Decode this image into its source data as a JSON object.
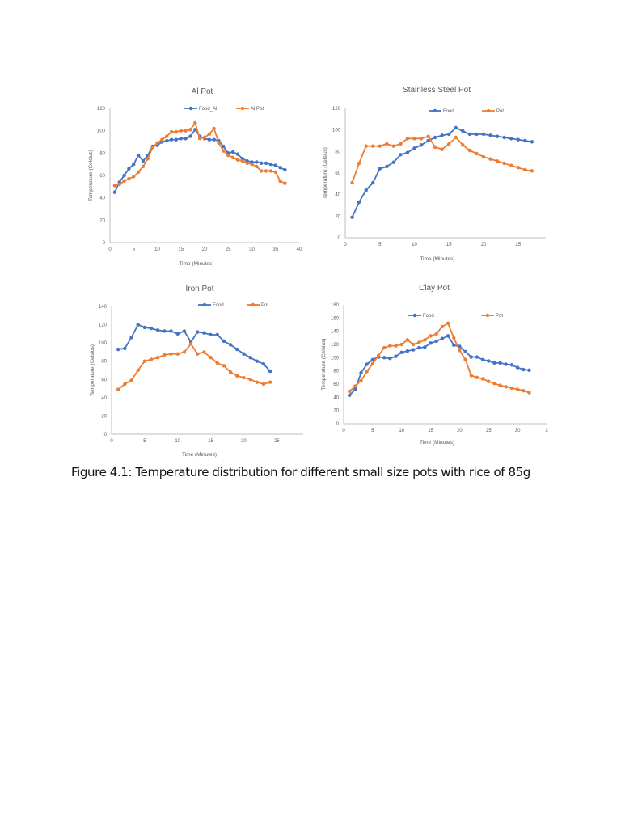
{
  "caption": "Figure 4.1: Temperature distribution for different small size pots with rice of 85g",
  "colors": {
    "food": "#4472C4",
    "pot": "#ED7D31"
  },
  "chart_data": [
    {
      "type": "line",
      "title": "Al Pot",
      "xlabel": "Time (Minutes)",
      "ylabel": "Temperature (Celsius)",
      "xlim": [
        0,
        40
      ],
      "ylim": [
        0,
        120
      ],
      "xticks": [
        "0",
        "5",
        "10",
        "15",
        "20",
        "25",
        "30",
        "35",
        "40"
      ],
      "yticks": [
        "0",
        "20",
        "40",
        "60",
        "80",
        "100",
        "120"
      ],
      "grid": false,
      "legend": "top",
      "x": [
        1,
        2,
        3,
        4,
        5,
        6,
        7,
        8,
        9,
        10,
        11,
        12,
        13,
        14,
        15,
        16,
        17,
        18,
        19,
        20,
        21,
        22,
        23,
        24,
        25,
        26,
        27,
        28,
        29,
        30,
        31,
        32,
        33,
        34,
        35,
        36,
        37
      ],
      "series": [
        {
          "name": "Food_Al",
          "color": "#4472C4",
          "values": [
            45,
            54,
            60,
            66,
            70,
            78,
            73,
            78,
            86,
            87,
            90,
            91,
            92,
            92,
            93,
            93,
            95,
            101,
            95,
            93,
            92,
            92,
            91,
            86,
            80,
            81,
            79,
            75,
            73,
            72,
            72,
            71,
            71,
            70,
            69,
            67,
            65
          ]
        },
        {
          "name": "Al Pot",
          "color": "#ED7D31",
          "values": [
            51,
            52,
            55,
            57,
            59,
            63,
            68,
            75,
            85,
            89,
            92,
            95,
            99,
            99,
            100,
            100,
            101,
            107,
            93,
            94,
            97,
            102,
            89,
            82,
            78,
            76,
            74,
            73,
            71,
            70,
            68,
            64,
            64,
            64,
            63,
            55,
            53
          ]
        }
      ]
    },
    {
      "type": "line",
      "title": "Stainless Steel Pot",
      "xlabel": "Time (Minutes)",
      "ylabel": "Temperature (Celsius)",
      "xlim": [
        0,
        29
      ],
      "ylim": [
        0,
        120
      ],
      "xticks": [
        "0",
        "5",
        "10",
        "15",
        "20",
        "25"
      ],
      "yticks": [
        "0",
        "20",
        "40",
        "60",
        "80",
        "100",
        "120"
      ],
      "grid": false,
      "legend": "top",
      "x": [
        1,
        2,
        3,
        4,
        5,
        6,
        7,
        8,
        9,
        10,
        11,
        12,
        13,
        14,
        15,
        16,
        17,
        18,
        19,
        20,
        21,
        22,
        23,
        24,
        25,
        26,
        27
      ],
      "series": [
        {
          "name": "Food",
          "color": "#4472C4",
          "values": [
            19,
            33,
            44,
            51,
            64,
            66,
            70,
            77,
            79,
            83,
            86,
            90,
            93,
            95,
            96,
            102,
            99,
            96,
            96,
            96,
            95,
            94,
            93,
            92,
            91,
            90,
            89
          ]
        },
        {
          "name": "Pot",
          "color": "#ED7D31",
          "values": [
            51,
            69,
            85,
            85,
            85,
            87,
            85,
            87,
            92,
            92,
            92,
            94,
            84,
            82,
            87,
            93,
            86,
            81,
            78,
            75,
            73,
            71,
            69,
            67,
            65,
            63,
            62
          ]
        }
      ]
    },
    {
      "type": "line",
      "title": "Iron Pot",
      "xlabel": "Time (Minutes)",
      "ylabel": "Temperature (Celsius)",
      "xlim": [
        0,
        29
      ],
      "ylim": [
        0,
        140
      ],
      "xticks": [
        "0",
        "5",
        "10",
        "15",
        "20",
        "25"
      ],
      "yticks": [
        "0",
        "20",
        "40",
        "60",
        "80",
        "100",
        "120",
        "140"
      ],
      "grid": false,
      "legend": "top",
      "x": [
        1,
        2,
        3,
        4,
        5,
        6,
        7,
        8,
        9,
        10,
        11,
        12,
        13,
        14,
        15,
        16,
        17,
        18,
        19,
        20,
        21,
        22,
        23,
        24
      ],
      "series": [
        {
          "name": "Food",
          "color": "#4472C4",
          "values": [
            93,
            94,
            106,
            120,
            117,
            116,
            114,
            113,
            113,
            110,
            113,
            101,
            112,
            111,
            109,
            109,
            102,
            98,
            93,
            88,
            84,
            80,
            77,
            69
          ]
        },
        {
          "name": "Pot",
          "color": "#ED7D31",
          "values": [
            49,
            55,
            59,
            70,
            80,
            82,
            84,
            87,
            88,
            88,
            90,
            99,
            88,
            90,
            84,
            78,
            75,
            68,
            64,
            62,
            60,
            57,
            55,
            57
          ]
        }
      ]
    },
    {
      "type": "line",
      "title": "Clay Pot",
      "xlabel": "Time (Minutes)",
      "ylabel": "Temperature (Celsius)",
      "xlim": [
        0,
        35
      ],
      "ylim": [
        0,
        180
      ],
      "xticks": [
        "0",
        "5",
        "10",
        "15",
        "20",
        "25",
        "30",
        "3"
      ],
      "yticks": [
        "0",
        "20",
        "40",
        "60",
        "80",
        "100",
        "120",
        "140",
        "160",
        "180"
      ],
      "grid": false,
      "legend": "top",
      "x": [
        1,
        2,
        3,
        4,
        5,
        6,
        7,
        8,
        9,
        10,
        11,
        12,
        13,
        14,
        15,
        16,
        17,
        18,
        19,
        20,
        21,
        22,
        23,
        24,
        25,
        26,
        27,
        28,
        29,
        30,
        31,
        32
      ],
      "series": [
        {
          "name": "Food",
          "color": "#4472C4",
          "values": [
            43,
            52,
            77,
            90,
            97,
            101,
            100,
            99,
            102,
            108,
            110,
            112,
            115,
            116,
            122,
            125,
            129,
            133,
            119,
            117,
            109,
            101,
            101,
            97,
            95,
            92,
            92,
            90,
            89,
            85,
            82,
            81
          ]
        },
        {
          "name": "Pot",
          "color": "#ED7D31",
          "values": [
            49,
            57,
            65,
            79,
            91,
            103,
            115,
            118,
            118,
            120,
            127,
            120,
            123,
            127,
            133,
            136,
            147,
            152,
            130,
            111,
            97,
            73,
            70,
            68,
            64,
            61,
            58,
            56,
            54,
            52,
            50,
            47
          ]
        }
      ]
    }
  ]
}
